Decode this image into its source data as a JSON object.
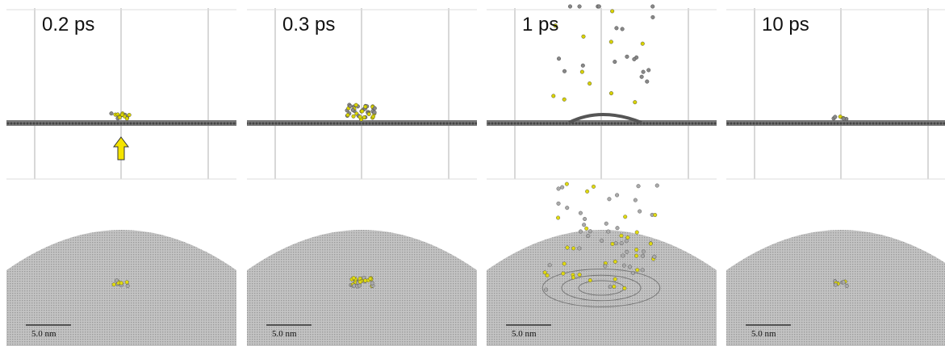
{
  "panels": [
    {
      "time": "0.2 ps",
      "scale_bar": "5.0 nm"
    },
    {
      "time": "0.3 ps",
      "scale_bar": "5.0 nm"
    },
    {
      "time": "1 ps",
      "scale_bar": "5.0 nm"
    },
    {
      "time": "10 ps",
      "scale_bar": "5.0 nm"
    }
  ]
}
